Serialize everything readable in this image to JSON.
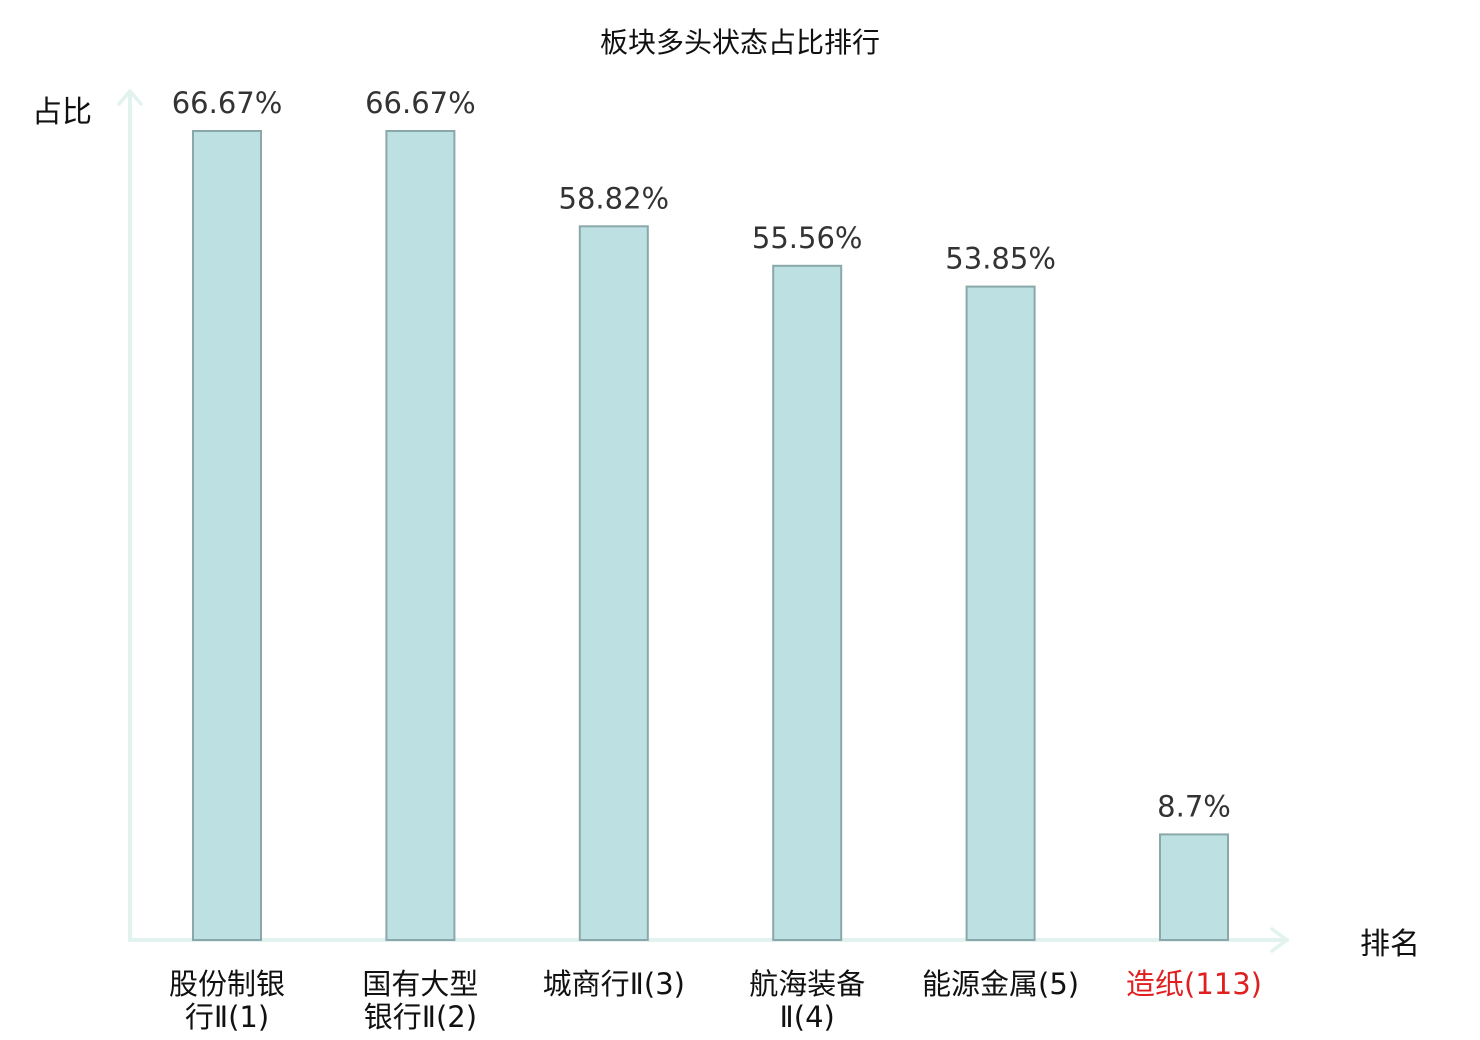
{
  "chart_data": {
    "type": "bar",
    "title": "板块多头状态占比排行",
    "ylabel": "占比",
    "xlabel": "排名",
    "categories": [
      {
        "lines": [
          "股份制银",
          "行Ⅱ(1)"
        ],
        "highlight": false
      },
      {
        "lines": [
          "国有大型",
          "银行Ⅱ(2)"
        ],
        "highlight": false
      },
      {
        "lines": [
          "城商行Ⅱ(3)"
        ],
        "highlight": false
      },
      {
        "lines": [
          "航海装备",
          "Ⅱ(4)"
        ],
        "highlight": false
      },
      {
        "lines": [
          "能源金属(5)"
        ],
        "highlight": false
      },
      {
        "lines": [
          "造纸(113)"
        ],
        "highlight": true
      }
    ],
    "values": [
      66.67,
      66.67,
      58.82,
      55.56,
      53.85,
      8.7
    ],
    "value_labels": [
      "66.67%",
      "66.67%",
      "58.82%",
      "55.56%",
      "53.85%",
      "8.7%"
    ],
    "ylim": [
      0,
      66.67
    ],
    "grid": false,
    "colors": {
      "bar_fill": "#bde0e3",
      "bar_stroke": "#8aa8aa",
      "axis": "#e2f2ef",
      "label_text": "#111111",
      "value_text": "#333333",
      "highlight": "#e02020"
    }
  }
}
